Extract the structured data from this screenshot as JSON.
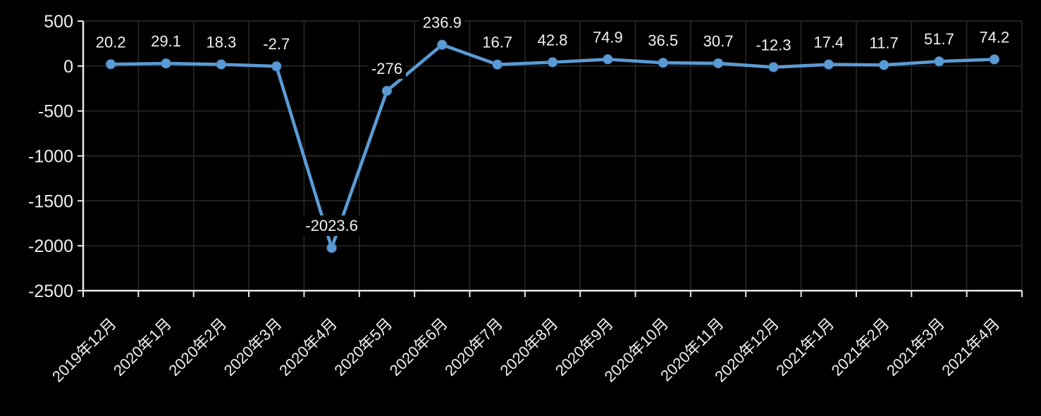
{
  "chart_data": {
    "type": "line",
    "title": "",
    "xlabel": "",
    "ylabel": "",
    "categories": [
      "2019年12月",
      "2020年1月",
      "2020年2月",
      "2020年3月",
      "2020年4月",
      "2020年5月",
      "2020年6月",
      "2020年7月",
      "2020年8月",
      "2020年9月",
      "2020年10月",
      "2020年11月",
      "2020年12月",
      "2021年1月",
      "2021年2月",
      "2021年3月",
      "2021年4月"
    ],
    "series": [
      {
        "name": "series-1",
        "values": [
          20.2,
          29.1,
          18.3,
          -2.7,
          -2023.6,
          -276,
          236.9,
          16.7,
          42.8,
          74.9,
          36.5,
          30.7,
          -12.3,
          17.4,
          11.7,
          51.7,
          74.2
        ],
        "labels": [
          "20.2",
          "29.1",
          "18.3",
          "-2.7",
          "-2023.6",
          "-276",
          "236.9",
          "16.7",
          "42.8",
          "74.9",
          "36.5",
          "30.7",
          "-12.3",
          "17.4",
          "11.7",
          "51.7",
          "74.2"
        ]
      }
    ],
    "ylim": [
      -2500,
      500
    ],
    "yticks": [
      500,
      0,
      -500,
      -1000,
      -1500,
      -2000,
      -2500
    ],
    "ytick_labels": [
      "500",
      "0",
      "-500",
      "-1000",
      "-1500",
      "-2000",
      "-2500"
    ],
    "grid": true,
    "legend": "none",
    "marker": "circle",
    "data_labels": "above-point-with-black-background",
    "x_label_rotation_deg": -45,
    "colors": {
      "background": "#000000",
      "line": "#5B9BD5",
      "marker_fill": "#5B9BD5",
      "marker_edge": "#4A86BF",
      "grid": "#2E2E2E",
      "axis": "#E8E8E8",
      "data_label_text": "#F2F0EC",
      "tick_label_text": "#F2F0EC"
    }
  }
}
